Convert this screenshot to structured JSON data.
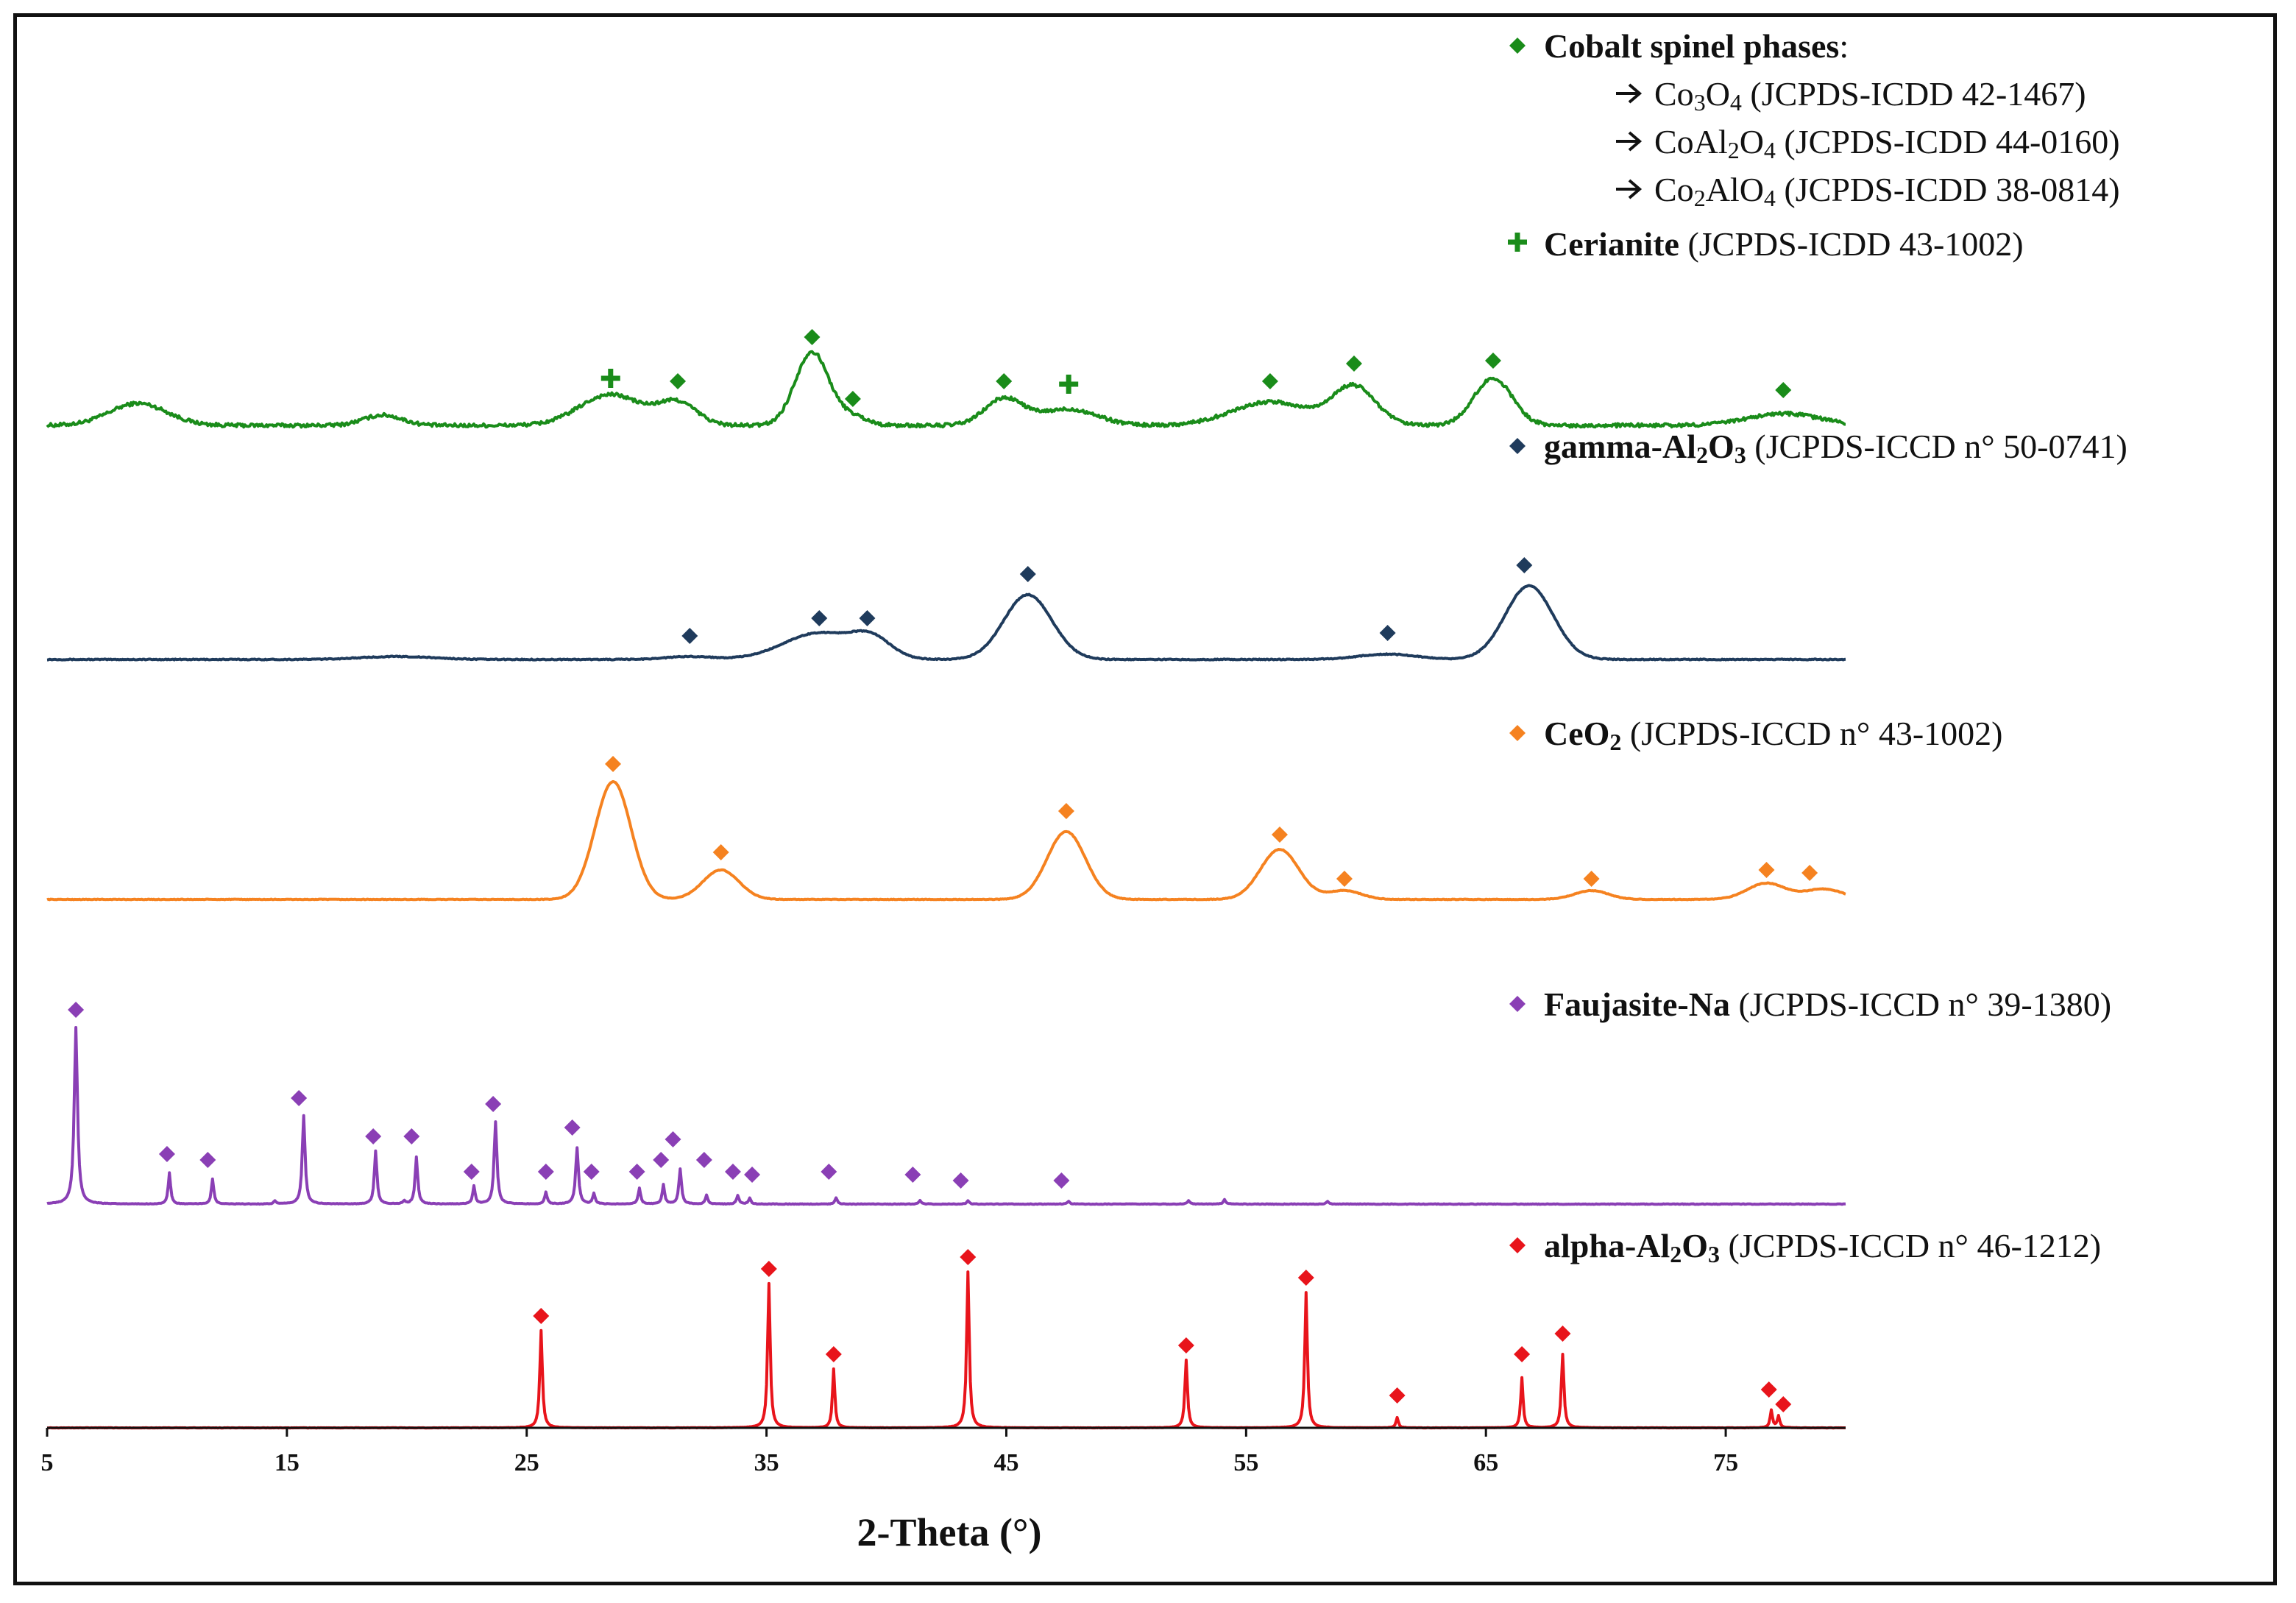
{
  "chart_data": {
    "type": "line",
    "title": "",
    "xlabel": "2-Theta (°)",
    "ylabel": "",
    "xlim": [
      5,
      80
    ],
    "xticks": [
      5,
      15,
      25,
      35,
      45,
      55,
      65,
      75
    ],
    "tick_labels": [
      "5",
      "15",
      "25",
      "35",
      "45",
      "55",
      "65",
      "75"
    ],
    "grid": false,
    "legend_position": "right, beside each pattern",
    "series": [
      {
        "name": "Cobalt spinel / Cerianite pattern",
        "color": "#1a8c1a",
        "style": "broad",
        "offset": 4,
        "noise": 0.12,
        "scale": 1.0,
        "peaks": [
          [
            8.8,
            0.75,
            1.2
          ],
          [
            19.0,
            0.35,
            0.8
          ],
          [
            28.5,
            1.05,
            1.3
          ],
          [
            31.3,
            0.75,
            0.8
          ],
          [
            36.9,
            2.5,
            0.7
          ],
          [
            38.6,
            0.3,
            0.6
          ],
          [
            44.9,
            0.9,
            0.8
          ],
          [
            47.6,
            0.55,
            1.2
          ],
          [
            56.0,
            0.8,
            1.6
          ],
          [
            59.5,
            1.3,
            0.9
          ],
          [
            65.3,
            1.6,
            0.8
          ],
          [
            77.4,
            0.4,
            1.5
          ]
        ],
        "markers": [
          {
            "x": 28.5,
            "y": 1.6,
            "shape": "plus"
          },
          {
            "x": 31.3,
            "y": 1.5,
            "shape": "diamond"
          },
          {
            "x": 36.9,
            "y": 3.0,
            "shape": "diamond"
          },
          {
            "x": 38.6,
            "y": 0.9,
            "shape": "diamond"
          },
          {
            "x": 44.9,
            "y": 1.5,
            "shape": "diamond"
          },
          {
            "x": 47.6,
            "y": 1.4,
            "shape": "plus"
          },
          {
            "x": 56.0,
            "y": 1.5,
            "shape": "diamond"
          },
          {
            "x": 59.5,
            "y": 2.1,
            "shape": "diamond"
          },
          {
            "x": 65.3,
            "y": 2.2,
            "shape": "diamond"
          },
          {
            "x": 77.4,
            "y": 1.2,
            "shape": "diamond"
          }
        ],
        "legend": [
          {
            "symbol": "diamond",
            "bold": "Cobalt spinel phases",
            "text": ":"
          },
          {
            "symbol": "arrow",
            "indent": true,
            "rich": [
              [
                "Co"
              ],
              [
                "3",
                "sub"
              ],
              [
                "O"
              ],
              [
                "4",
                "sub"
              ],
              [
                " (JCPDS-ICDD 42-1467)"
              ]
            ]
          },
          {
            "symbol": "arrow",
            "indent": true,
            "rich": [
              [
                "CoAl"
              ],
              [
                "2",
                "sub"
              ],
              [
                "O"
              ],
              [
                "4",
                "sub"
              ],
              [
                " (JCPDS-ICDD 44-0160)"
              ]
            ]
          },
          {
            "symbol": "arrow",
            "indent": true,
            "rich": [
              [
                "Co"
              ],
              [
                "2",
                "sub"
              ],
              [
                "AlO"
              ],
              [
                "4",
                "sub"
              ],
              [
                " (JCPDS-ICDD 38-0814)"
              ]
            ]
          },
          {
            "symbol": "plus",
            "bold": "Cerianite",
            "text": " (JCPDS-ICDD 43-1002)"
          }
        ]
      },
      {
        "name": "gamma-Al2O3 pattern",
        "color": "#1f3b5c",
        "style": "broad",
        "offset": 3,
        "noise": 0.03,
        "scale": 1.0,
        "peaks": [
          [
            31.8,
            0.1,
            1.0
          ],
          [
            37.2,
            0.9,
            1.5
          ],
          [
            39.4,
            0.6,
            0.8
          ],
          [
            45.9,
            2.2,
            1.0
          ],
          [
            60.9,
            0.18,
            1.2
          ],
          [
            66.8,
            2.5,
            1.0
          ],
          [
            19.6,
            0.1,
            1.5
          ]
        ],
        "markers": [
          {
            "x": 31.8,
            "y": 0.8,
            "shape": "diamond"
          },
          {
            "x": 37.2,
            "y": 1.4,
            "shape": "diamond"
          },
          {
            "x": 39.2,
            "y": 1.4,
            "shape": "diamond"
          },
          {
            "x": 45.9,
            "y": 2.9,
            "shape": "diamond"
          },
          {
            "x": 60.9,
            "y": 0.9,
            "shape": "diamond"
          },
          {
            "x": 66.6,
            "y": 3.2,
            "shape": "diamond"
          }
        ],
        "legend": [
          {
            "symbol": "diamond",
            "rich": [
              [
                "gamma-Al",
                "bold"
              ],
              [
                "2",
                "boldsub"
              ],
              [
                "O",
                "bold"
              ],
              [
                "3",
                "boldsub"
              ],
              [
                " (JCPDS-ICCD n° 50-0741)"
              ]
            ]
          }
        ]
      },
      {
        "name": "CeO2 pattern",
        "color": "#f58220",
        "style": "broad",
        "offset": 2,
        "noise": 0.02,
        "scale": 1.0,
        "peaks": [
          [
            28.6,
            4.0,
            0.75
          ],
          [
            33.1,
            1.0,
            0.75
          ],
          [
            47.5,
            2.3,
            0.8
          ],
          [
            56.4,
            1.7,
            0.8
          ],
          [
            59.1,
            0.3,
            0.7
          ],
          [
            69.4,
            0.3,
            0.7
          ],
          [
            76.7,
            0.55,
            0.8
          ],
          [
            79.1,
            0.35,
            0.8
          ]
        ],
        "markers": [
          {
            "x": 28.6,
            "y": 4.6,
            "shape": "diamond"
          },
          {
            "x": 33.1,
            "y": 1.6,
            "shape": "diamond"
          },
          {
            "x": 47.5,
            "y": 3.0,
            "shape": "diamond"
          },
          {
            "x": 56.4,
            "y": 2.2,
            "shape": "diamond"
          },
          {
            "x": 59.1,
            "y": 0.7,
            "shape": "diamond"
          },
          {
            "x": 69.4,
            "y": 0.7,
            "shape": "diamond"
          },
          {
            "x": 76.7,
            "y": 1.0,
            "shape": "diamond"
          },
          {
            "x": 78.5,
            "y": 0.9,
            "shape": "diamond"
          }
        ],
        "legend": [
          {
            "symbol": "diamond",
            "rich": [
              [
                "CeO",
                "bold"
              ],
              [
                "2",
                "boldsub"
              ],
              [
                " (JCPDS-ICCD n° 43-1002)"
              ]
            ]
          }
        ]
      },
      {
        "name": "Faujasite-Na pattern",
        "color": "#8a3fb5",
        "style": "sharp",
        "offset": 1,
        "noise": 0.02,
        "scale": 1.0,
        "peaks": [
          [
            6.2,
            6.0,
            0.16
          ],
          [
            10.1,
            1.05,
            0.12
          ],
          [
            11.9,
            0.85,
            0.12
          ],
          [
            15.7,
            3.0,
            0.14
          ],
          [
            18.7,
            1.8,
            0.13
          ],
          [
            20.4,
            1.6,
            0.13
          ],
          [
            22.8,
            0.6,
            0.12
          ],
          [
            23.7,
            2.8,
            0.14
          ],
          [
            25.8,
            0.4,
            0.12
          ],
          [
            27.1,
            1.9,
            0.14
          ],
          [
            27.8,
            0.35,
            0.12
          ],
          [
            29.7,
            0.55,
            0.12
          ],
          [
            30.7,
            0.65,
            0.12
          ],
          [
            31.4,
            1.2,
            0.13
          ],
          [
            32.5,
            0.3,
            0.12
          ],
          [
            33.8,
            0.3,
            0.12
          ],
          [
            34.3,
            0.2,
            0.12
          ],
          [
            37.9,
            0.22,
            0.12
          ],
          [
            41.4,
            0.12,
            0.12
          ],
          [
            43.4,
            0.12,
            0.12
          ],
          [
            47.6,
            0.1,
            0.12
          ],
          [
            52.6,
            0.12,
            0.12
          ],
          [
            54.1,
            0.15,
            0.12
          ],
          [
            58.4,
            0.1,
            0.12
          ],
          [
            14.5,
            0.1,
            0.12
          ],
          [
            19.9,
            0.1,
            0.12
          ]
        ],
        "markers": [
          {
            "x": 6.2,
            "y": 6.6,
            "shape": "diamond"
          },
          {
            "x": 10.0,
            "y": 1.7,
            "shape": "diamond"
          },
          {
            "x": 11.7,
            "y": 1.5,
            "shape": "diamond"
          },
          {
            "x": 15.5,
            "y": 3.6,
            "shape": "diamond"
          },
          {
            "x": 18.6,
            "y": 2.3,
            "shape": "diamond"
          },
          {
            "x": 20.2,
            "y": 2.3,
            "shape": "diamond"
          },
          {
            "x": 22.7,
            "y": 1.1,
            "shape": "diamond"
          },
          {
            "x": 23.6,
            "y": 3.4,
            "shape": "diamond"
          },
          {
            "x": 25.8,
            "y": 1.1,
            "shape": "diamond"
          },
          {
            "x": 26.9,
            "y": 2.6,
            "shape": "diamond"
          },
          {
            "x": 27.7,
            "y": 1.1,
            "shape": "diamond"
          },
          {
            "x": 29.6,
            "y": 1.1,
            "shape": "diamond"
          },
          {
            "x": 30.6,
            "y": 1.5,
            "shape": "diamond"
          },
          {
            "x": 31.1,
            "y": 2.2,
            "shape": "diamond"
          },
          {
            "x": 32.4,
            "y": 1.5,
            "shape": "diamond"
          },
          {
            "x": 33.6,
            "y": 1.1,
            "shape": "diamond"
          },
          {
            "x": 34.4,
            "y": 1.0,
            "shape": "diamond"
          },
          {
            "x": 37.6,
            "y": 1.1,
            "shape": "diamond"
          },
          {
            "x": 41.1,
            "y": 1.0,
            "shape": "diamond"
          },
          {
            "x": 43.1,
            "y": 0.8,
            "shape": "diamond"
          },
          {
            "x": 47.3,
            "y": 0.8,
            "shape": "diamond"
          }
        ],
        "legend": [
          {
            "symbol": "diamond",
            "rich": [
              [
                "Faujasite-Na",
                "bold"
              ],
              [
                " (JCPDS-ICCD n° 39-1380)"
              ]
            ]
          }
        ]
      },
      {
        "name": "alpha-Al2O3 pattern",
        "color": "#e8141b",
        "style": "sharp",
        "offset": 0,
        "noise": 0.01,
        "scale": 1.0,
        "peaks": [
          [
            25.6,
            3.3,
            0.13
          ],
          [
            35.1,
            4.9,
            0.13
          ],
          [
            37.8,
            2.0,
            0.12
          ],
          [
            43.4,
            5.3,
            0.13
          ],
          [
            52.5,
            2.3,
            0.13
          ],
          [
            57.5,
            4.6,
            0.13
          ],
          [
            61.3,
            0.35,
            0.12
          ],
          [
            66.5,
            1.7,
            0.12
          ],
          [
            68.2,
            2.5,
            0.13
          ],
          [
            76.9,
            0.6,
            0.12
          ],
          [
            77.2,
            0.4,
            0.12
          ]
        ],
        "markers": [
          {
            "x": 25.6,
            "y": 3.8,
            "shape": "diamond"
          },
          {
            "x": 35.1,
            "y": 5.4,
            "shape": "diamond"
          },
          {
            "x": 37.8,
            "y": 2.5,
            "shape": "diamond"
          },
          {
            "x": 43.4,
            "y": 5.8,
            "shape": "diamond"
          },
          {
            "x": 52.5,
            "y": 2.8,
            "shape": "diamond"
          },
          {
            "x": 57.5,
            "y": 5.1,
            "shape": "diamond"
          },
          {
            "x": 61.3,
            "y": 1.1,
            "shape": "diamond"
          },
          {
            "x": 66.5,
            "y": 2.5,
            "shape": "diamond"
          },
          {
            "x": 68.2,
            "y": 3.2,
            "shape": "diamond"
          },
          {
            "x": 76.8,
            "y": 1.3,
            "shape": "diamond"
          },
          {
            "x": 77.4,
            "y": 0.8,
            "shape": "diamond"
          }
        ],
        "legend": [
          {
            "symbol": "diamond",
            "rich": [
              [
                "alpha-Al",
                "bold"
              ],
              [
                "2",
                "boldsub"
              ],
              [
                "O",
                "bold"
              ],
              [
                "3",
                "boldsub"
              ],
              [
                " (JCPDS-ICCD n° 46-1212)"
              ]
            ]
          }
        ]
      }
    ]
  }
}
